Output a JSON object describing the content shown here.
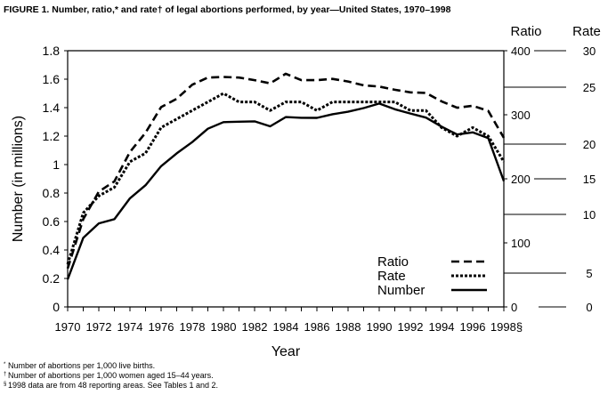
{
  "chart_data": {
    "type": "line",
    "title": "FIGURE 1. Number, ratio,* and rate† of legal abortions performed, by year—United States, 1970–1998",
    "xlabel": "Year",
    "ylabel": "Number (in millions)",
    "y2label": "Ratio",
    "y3label": "Rate",
    "xlim": [
      1970,
      1998
    ],
    "ylim": [
      0,
      1.8
    ],
    "y2lim": [
      0,
      400
    ],
    "y3lim": [
      0,
      30
    ],
    "x_ticks": [
      "1970",
      "1972",
      "1974",
      "1976",
      "1978",
      "1980",
      "1982",
      "1984",
      "1986",
      "1988",
      "1990",
      "1992",
      "1994",
      "1996",
      "1998§"
    ],
    "y_ticks": [
      "0",
      "0.2",
      "0.4",
      "0.6",
      "0.8",
      "1",
      "1.2",
      "1.4",
      "1.6",
      "1.8"
    ],
    "y2_ticks": [
      "0",
      "100",
      "200",
      "300",
      "400"
    ],
    "y3_ticks": [
      "0",
      "5",
      "10",
      "15",
      "20",
      "25",
      "30"
    ],
    "grid": false,
    "legend_position": "bottom-right",
    "x": [
      1970,
      1971,
      1972,
      1973,
      1974,
      1975,
      1976,
      1977,
      1978,
      1979,
      1980,
      1981,
      1982,
      1983,
      1984,
      1985,
      1986,
      1987,
      1988,
      1989,
      1990,
      1991,
      1992,
      1993,
      1994,
      1995,
      1996,
      1997,
      1998
    ],
    "series": [
      {
        "name": "Ratio",
        "axis": "ratio",
        "style": "dashed",
        "values": [
          60,
          137,
          180,
          196,
          242,
          272,
          312,
          325,
          347,
          358,
          359,
          358,
          354,
          349,
          364,
          354,
          354,
          356,
          352,
          346,
          344,
          339,
          335,
          334,
          321,
          311,
          314,
          306,
          264
        ]
      },
      {
        "name": "Rate",
        "axis": "rate",
        "style": "dotted",
        "values": [
          5,
          11,
          13,
          14,
          17,
          18,
          21,
          22,
          23,
          24,
          25,
          24,
          24,
          23,
          24,
          24,
          23,
          24,
          24,
          24,
          24,
          24,
          23,
          23,
          21,
          20,
          21,
          20,
          17
        ]
      },
      {
        "name": "Number",
        "axis": "number",
        "style": "solid",
        "values": [
          0.193,
          0.485,
          0.587,
          0.616,
          0.763,
          0.855,
          0.989,
          1.079,
          1.158,
          1.252,
          1.298,
          1.301,
          1.304,
          1.269,
          1.334,
          1.329,
          1.328,
          1.354,
          1.371,
          1.397,
          1.429,
          1.389,
          1.359,
          1.33,
          1.267,
          1.211,
          1.226,
          1.186,
          0.884
        ]
      }
    ],
    "footnotes": [
      {
        "mark": "*",
        "text": "Number of abortions per 1,000 live births."
      },
      {
        "mark": "†",
        "text": "Number of abortions per 1,000 women aged 15–44 years."
      },
      {
        "mark": "§",
        "text": "1998 data are from 48 reporting areas. See Tables 1 and 2."
      }
    ]
  }
}
